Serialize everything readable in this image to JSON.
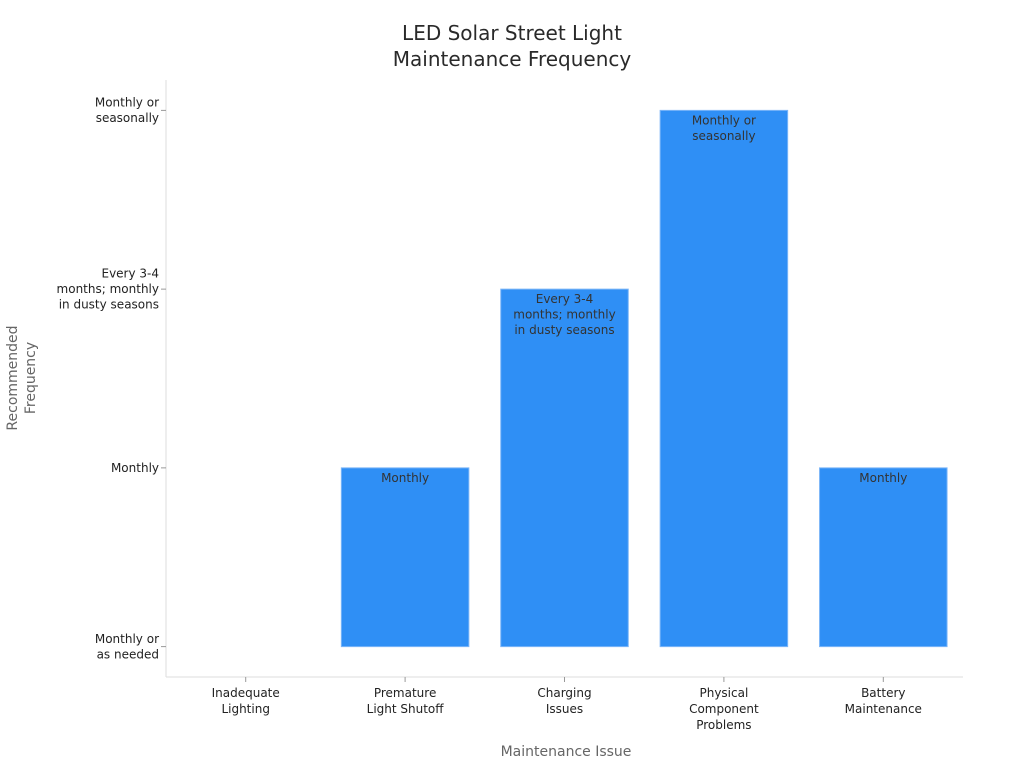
{
  "chart_data": {
    "type": "bar",
    "title": [
      "LED Solar Street Light",
      "Maintenance Frequency"
    ],
    "xlabel": "Maintenance Issue",
    "ylabel": [
      "Recommended",
      "Frequency"
    ],
    "categories": [
      [
        "Inadequate",
        "Lighting"
      ],
      [
        "Premature",
        "Light Shutoff"
      ],
      [
        "Charging",
        "Issues"
      ],
      [
        "Physical",
        "Component",
        "Problems"
      ],
      [
        "Battery",
        "Maintenance"
      ]
    ],
    "y_levels": [
      [
        "Monthly or",
        "as needed"
      ],
      [
        "Monthly"
      ],
      [
        "Every 3-4",
        "months; monthly",
        "in dusty seasons"
      ],
      [
        "Monthly or",
        "seasonally"
      ]
    ],
    "values": [
      0,
      1,
      2,
      3,
      1
    ],
    "data_labels": [
      null,
      [
        "Monthly"
      ],
      [
        "Every 3-4",
        "months; monthly",
        "in dusty seasons"
      ],
      [
        "Monthly or",
        "seasonally"
      ],
      [
        "Monthly"
      ]
    ],
    "ylim": [
      -0.17,
      3.17
    ],
    "grid": false,
    "legend": "none",
    "colors": {
      "bar": "#2f8ff5",
      "bar_edge": "#7cb6f8",
      "axis": "#dddddd"
    }
  }
}
